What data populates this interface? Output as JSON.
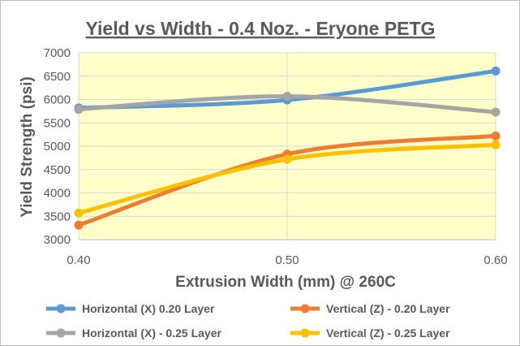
{
  "chart_data": {
    "type": "line",
    "title": "Yield vs Width - 0.4 Noz. - Eryone PETG",
    "xlabel": "Extrusion Width (mm) @ 260C",
    "ylabel": "Yield Strength (psi)",
    "categories": [
      "0.40",
      "0.50",
      "0.60"
    ],
    "x": [
      0.4,
      0.5,
      0.6
    ],
    "xlim": [
      0.4,
      0.6
    ],
    "ylim": [
      3000,
      7000
    ],
    "y_ticks": [
      "3000",
      "3500",
      "4000",
      "4500",
      "5000",
      "5500",
      "6000",
      "6500",
      "7000"
    ],
    "grid": true,
    "plot_background": "#ffffc9",
    "legend_position": "bottom",
    "series": [
      {
        "name": "Horizontal (X) 0.20 Layer",
        "color": "#5b9bd5",
        "values": [
          5820,
          5990,
          6610
        ]
      },
      {
        "name": "Vertical (Z) - 0.20 Layer",
        "color": "#ed7d31",
        "values": [
          3310,
          4830,
          5220
        ]
      },
      {
        "name": "Horizontal (X) - 0.25 Layer",
        "color": "#a5a5a5",
        "values": [
          5790,
          6070,
          5730
        ]
      },
      {
        "name": "Vertical (Z) - 0.25 Layer",
        "color": "#ffc000",
        "values": [
          3570,
          4720,
          5030
        ]
      }
    ]
  }
}
